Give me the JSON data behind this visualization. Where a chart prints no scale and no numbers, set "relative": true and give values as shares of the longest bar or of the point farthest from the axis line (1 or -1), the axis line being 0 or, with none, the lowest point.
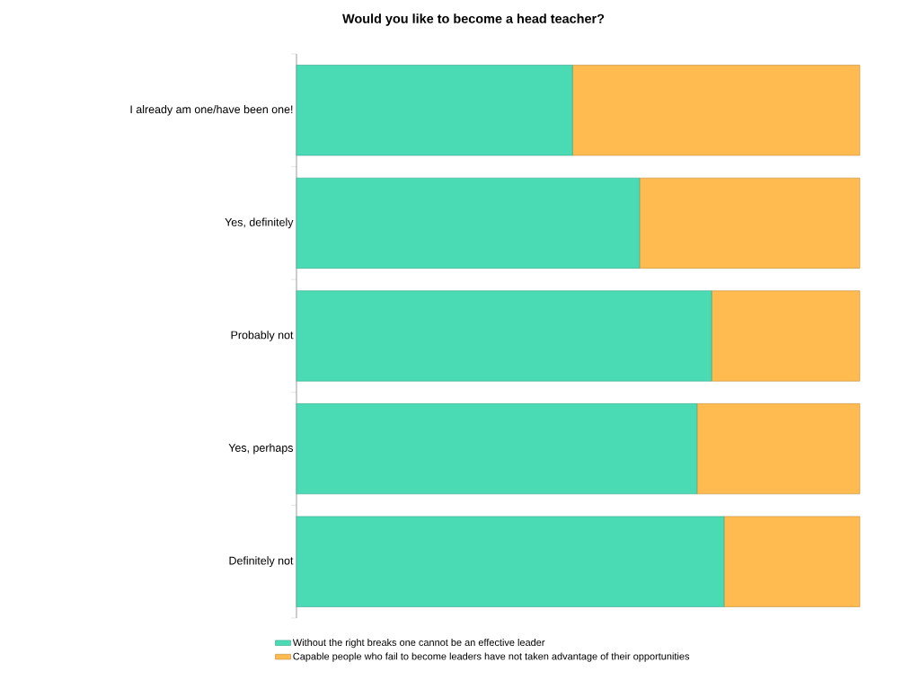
{
  "chart_data": {
    "type": "bar",
    "orientation": "horizontal",
    "stacked": true,
    "relative": true,
    "title": "Would you like to become a head teacher?",
    "categories": [
      "I already am one/have been one!",
      "Yes, definitely",
      "Probably not",
      "Yes, perhaps",
      "Definitely not"
    ],
    "series": [
      {
        "name": "Without the right breaks one cannot be an effective leader",
        "color": "#4adbb5",
        "values": [
          0.49,
          0.609,
          0.737,
          0.711,
          0.759
        ]
      },
      {
        "name": "Capable people who fail to become leaders have not taken advantage of their opportunities",
        "color": "#ffbb50",
        "values": [
          0.51,
          0.391,
          0.263,
          0.289,
          0.241
        ]
      }
    ],
    "legend": "bottom"
  }
}
